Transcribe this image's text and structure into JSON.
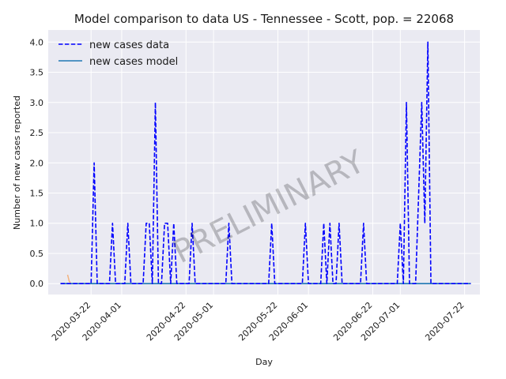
{
  "chart_data": {
    "type": "line",
    "title": "Model comparison to data US - Tennessee - Scott, pop. = 22068",
    "xlabel": "Day",
    "ylabel": "Number of new cases reported",
    "watermark": "PRELIMINARY",
    "x_range": [
      "2020-03-08",
      "2020-07-27"
    ],
    "ylim": [
      -0.18,
      4.2
    ],
    "y_ticks": [
      0.0,
      0.5,
      1.0,
      1.5,
      2.0,
      2.5,
      3.0,
      3.5,
      4.0
    ],
    "y_tick_labels": [
      "0.0",
      "0.5",
      "1.0",
      "1.5",
      "2.0",
      "2.5",
      "3.0",
      "3.5",
      "4.0"
    ],
    "x_ticks": [
      "2020-03-22",
      "2020-04-01",
      "2020-04-22",
      "2020-05-01",
      "2020-05-22",
      "2020-06-01",
      "2020-06-22",
      "2020-07-01",
      "2020-07-22"
    ],
    "x_tick_labels": [
      "2020-03-22",
      "2020-04-01",
      "2020-04-22",
      "2020-05-01",
      "2020-05-22",
      "2020-06-01",
      "2020-06-22",
      "2020-07-01",
      "2020-07-22"
    ],
    "grid": true,
    "legend_position": "top-left",
    "series": [
      {
        "name": "new cases data",
        "style": "dashed",
        "color": "#0000ff",
        "points": [
          [
            "2020-03-12",
            0
          ],
          [
            "2020-03-22",
            0
          ],
          [
            "2020-03-23",
            2
          ],
          [
            "2020-03-24",
            0
          ],
          [
            "2020-03-28",
            0
          ],
          [
            "2020-03-29",
            1
          ],
          [
            "2020-03-30",
            0
          ],
          [
            "2020-04-02",
            0
          ],
          [
            "2020-04-03",
            1
          ],
          [
            "2020-04-04",
            0
          ],
          [
            "2020-04-08",
            0
          ],
          [
            "2020-04-09",
            1
          ],
          [
            "2020-04-10",
            1
          ],
          [
            "2020-04-11",
            0
          ],
          [
            "2020-04-12",
            3
          ],
          [
            "2020-04-13",
            0
          ],
          [
            "2020-04-14",
            0
          ],
          [
            "2020-04-15",
            1
          ],
          [
            "2020-04-16",
            1
          ],
          [
            "2020-04-17",
            0
          ],
          [
            "2020-04-18",
            1
          ],
          [
            "2020-04-19",
            0
          ],
          [
            "2020-04-23",
            0
          ],
          [
            "2020-04-24",
            1
          ],
          [
            "2020-04-25",
            0
          ],
          [
            "2020-05-05",
            0
          ],
          [
            "2020-05-06",
            1
          ],
          [
            "2020-05-07",
            0
          ],
          [
            "2020-05-19",
            0
          ],
          [
            "2020-05-20",
            1
          ],
          [
            "2020-05-21",
            0
          ],
          [
            "2020-05-30",
            0
          ],
          [
            "2020-05-31",
            1
          ],
          [
            "2020-06-01",
            0
          ],
          [
            "2020-06-05",
            0
          ],
          [
            "2020-06-06",
            1
          ],
          [
            "2020-06-07",
            0
          ],
          [
            "2020-06-08",
            1
          ],
          [
            "2020-06-09",
            0
          ],
          [
            "2020-06-10",
            0
          ],
          [
            "2020-06-11",
            1
          ],
          [
            "2020-06-12",
            0
          ],
          [
            "2020-06-18",
            0
          ],
          [
            "2020-06-19",
            1
          ],
          [
            "2020-06-20",
            0
          ],
          [
            "2020-06-30",
            0
          ],
          [
            "2020-07-01",
            1
          ],
          [
            "2020-07-02",
            0
          ],
          [
            "2020-07-03",
            3
          ],
          [
            "2020-07-04",
            0
          ],
          [
            "2020-07-06",
            0
          ],
          [
            "2020-07-08",
            3
          ],
          [
            "2020-07-09",
            1
          ],
          [
            "2020-07-10",
            4
          ],
          [
            "2020-07-11",
            0
          ],
          [
            "2020-07-24",
            0
          ]
        ]
      },
      {
        "name": "new cases model",
        "style": "solid",
        "color": "#1f77b4",
        "points": [
          [
            "2020-03-12",
            0
          ],
          [
            "2020-07-24",
            0
          ]
        ]
      }
    ]
  }
}
